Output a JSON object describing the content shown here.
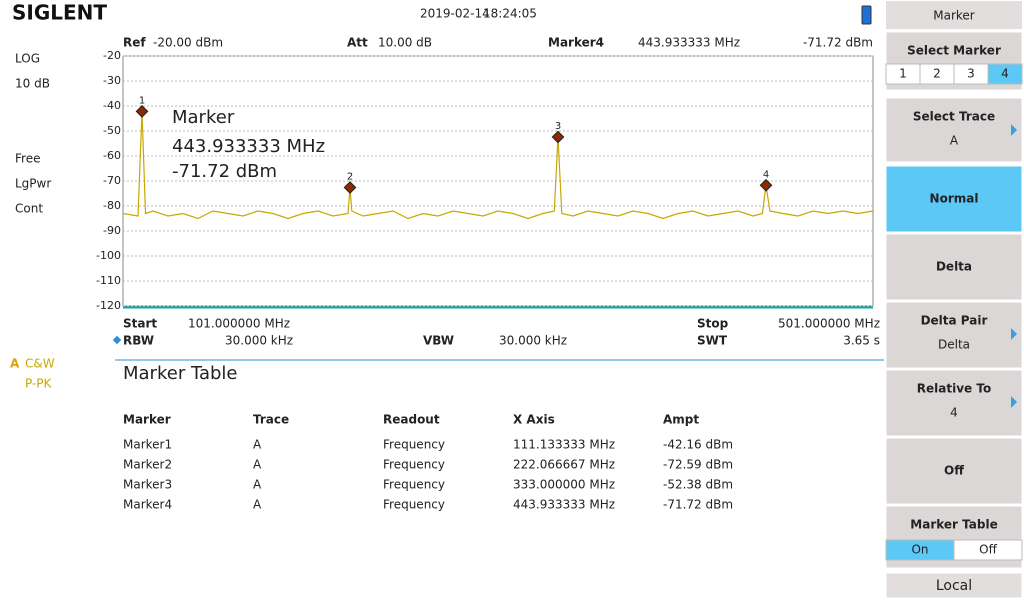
{
  "header": {
    "brand": "SIGLENT",
    "date": "2019-02-14",
    "time": "18:24:05"
  },
  "left_panel": {
    "scale_type": "LOG",
    "scale_div": "10 dB",
    "trigger": "Free",
    "detector_mode": "LgPwr",
    "sweep": "Cont",
    "trace_label": "A",
    "trace_mode": "C&W",
    "trace_detector": "P-PK"
  },
  "top_params": {
    "ref_label": "Ref",
    "ref_value": "-20.00 dBm",
    "att_label": "Att",
    "att_value": "10.00 dB",
    "marker_label": "Marker4",
    "marker_freq": "443.933333 MHz",
    "marker_ampl": "-71.72 dBm"
  },
  "chart": {
    "type": "line",
    "ylim": [
      -120,
      -20
    ],
    "yticks": [
      -20,
      -30,
      -40,
      -50,
      -60,
      -70,
      -80,
      -90,
      -100,
      -110,
      -120
    ],
    "grid": true,
    "xlim": [
      101,
      501
    ],
    "color": "#c8a800",
    "marker_color": "#8b2a00",
    "x": [
      101,
      109,
      111.133333,
      113,
      117,
      125,
      133,
      141,
      149,
      157,
      165,
      173,
      181,
      189,
      197,
      205,
      213,
      221,
      222.066667,
      223,
      229,
      237,
      245,
      253,
      261,
      269,
      277,
      285,
      293,
      301,
      309,
      317,
      325,
      331,
      333,
      335,
      341,
      349,
      357,
      365,
      373,
      381,
      389,
      397,
      405,
      413,
      421,
      429,
      437,
      442,
      443.933333,
      446,
      453,
      461,
      469,
      477,
      485,
      493,
      501
    ],
    "values": [
      -83,
      -84,
      -42.16,
      -83,
      -82,
      -84,
      -83,
      -85,
      -82,
      -83,
      -84,
      -82,
      -83,
      -85,
      -83,
      -82,
      -84,
      -83,
      -72.59,
      -82,
      -84,
      -83,
      -82,
      -85,
      -83,
      -84,
      -82,
      -83,
      -84,
      -82,
      -83,
      -85,
      -83,
      -82,
      -52.38,
      -83,
      -84,
      -82,
      -83,
      -84,
      -82,
      -83,
      -85,
      -83,
      -82,
      -84,
      -83,
      -82,
      -84,
      -83,
      -71.72,
      -82,
      -83,
      -84,
      -82,
      -83,
      -82,
      -83,
      -82
    ],
    "markers": [
      {
        "label": "1",
        "x": 111.133333,
        "y": -42.16
      },
      {
        "label": "2",
        "x": 222.066667,
        "y": -72.59
      },
      {
        "label": "3",
        "x": 333.0,
        "y": -52.38
      },
      {
        "label": "4",
        "x": 443.933333,
        "y": -71.72
      }
    ],
    "annotation": {
      "title": "Marker",
      "freq": "443.933333 MHz",
      "ampl": "-71.72 dBm"
    }
  },
  "bottom_params": {
    "start_label": "Start",
    "start_value": "101.000000 MHz",
    "stop_label": "Stop",
    "stop_value": "501.000000 MHz",
    "rbw_label": "RBW",
    "rbw_value": "30.000 kHz",
    "vbw_label": "VBW",
    "vbw_value": "30.000 kHz",
    "swt_label": "SWT",
    "swt_value": "3.65 s"
  },
  "marker_table": {
    "title": "Marker Table",
    "columns": [
      "Marker",
      "Trace",
      "Readout",
      "X Axis",
      "Ampt"
    ],
    "rows": [
      [
        "Marker1",
        "A",
        "Frequency",
        "111.133333 MHz",
        "-42.16 dBm"
      ],
      [
        "Marker2",
        "A",
        "Frequency",
        "222.066667 MHz",
        "-72.59 dBm"
      ],
      [
        "Marker3",
        "A",
        "Frequency",
        "333.000000 MHz",
        "-52.38 dBm"
      ],
      [
        "Marker4",
        "A",
        "Frequency",
        "443.933333 MHz",
        "-71.72 dBm"
      ]
    ]
  },
  "softkeys": {
    "menu_title": "Marker",
    "select_marker": {
      "label": "Select Marker",
      "options": [
        "1",
        "2",
        "3",
        "4"
      ],
      "selected": 3
    },
    "select_trace": {
      "label": "Select Trace",
      "value": "A"
    },
    "normal": {
      "label": "Normal"
    },
    "delta": {
      "label": "Delta"
    },
    "delta_pair": {
      "label": "Delta Pair",
      "value": "Delta"
    },
    "relative_to": {
      "label": "Relative To",
      "value": "4"
    },
    "off": {
      "label": "Off"
    },
    "marker_table": {
      "label": "Marker Table",
      "options": [
        "On",
        "Off"
      ],
      "selected": 0
    },
    "local": {
      "label": "Local"
    }
  }
}
